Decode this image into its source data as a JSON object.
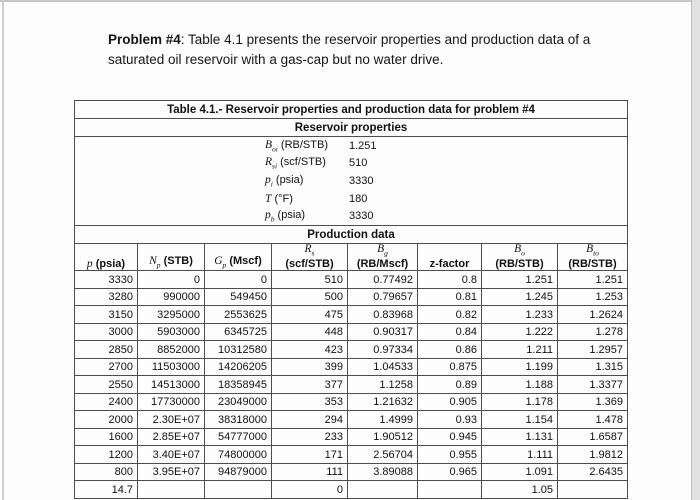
{
  "problem": {
    "label": "Problem #4",
    "text": ": Table 4.1 presents the reservoir properties and production data of a saturated oil reservoir with a gas-cap but no water drive."
  },
  "table": {
    "title": "Table 4.1.- Reservoir properties and production data for problem #4",
    "sections": {
      "reservoir_properties": {
        "heading": "Reservoir properties",
        "rows": [
          {
            "key": "Boi",
            "symbol": "B",
            "sub": "oi",
            "unit": "(RB/STB)",
            "value": "1.251"
          },
          {
            "key": "Rsi",
            "symbol": "R",
            "sub": "si",
            "unit": "(scf/STB)",
            "value": "510"
          },
          {
            "key": "pi",
            "symbol": "p",
            "sub": "i",
            "unit": "(psia)",
            "value": "3330"
          },
          {
            "key": "T",
            "symbol": "T",
            "sub": "",
            "unit": "(°F)",
            "value": "180"
          },
          {
            "key": "pb",
            "symbol": "p",
            "sub": "b",
            "unit": "(psia)",
            "value": "3330"
          }
        ]
      },
      "production_data": {
        "heading": "Production data",
        "columns": [
          {
            "key": "p",
            "symbol": "p",
            "sub": "",
            "unit": "(psia)",
            "twoline": false
          },
          {
            "key": "Np",
            "symbol": "N",
            "sub": "p",
            "unit": "(STB)",
            "twoline": false
          },
          {
            "key": "Gp",
            "symbol": "G",
            "sub": "p",
            "unit": "(Mscf)",
            "twoline": false
          },
          {
            "key": "Rs",
            "symbol": "R",
            "sub": "s",
            "unit": "(scf/STB)",
            "twoline": true
          },
          {
            "key": "Bg",
            "symbol": "B",
            "sub": "g",
            "unit": "(RB/Mscf)",
            "twoline": true
          },
          {
            "key": "z",
            "symbol": "",
            "sub": "",
            "unit": "z-factor",
            "twoline": false
          },
          {
            "key": "Bo",
            "symbol": "B",
            "sub": "o",
            "unit": "(RB/STB)",
            "twoline": true
          },
          {
            "key": "Bto",
            "symbol": "B",
            "sub": "to",
            "unit": "(RB/STB)",
            "twoline": true
          }
        ],
        "rows": [
          [
            "3330",
            "0",
            "0",
            "510",
            "0.77492",
            "0.8",
            "1.251",
            "1.251"
          ],
          [
            "3280",
            "990000",
            "549450",
            "500",
            "0.79657",
            "0.81",
            "1.245",
            "1.253"
          ],
          [
            "3150",
            "3295000",
            "2553625",
            "475",
            "0.83968",
            "0.82",
            "1.233",
            "1.2624"
          ],
          [
            "3000",
            "5903000",
            "6345725",
            "448",
            "0.90317",
            "0.84",
            "1.222",
            "1.278"
          ],
          [
            "2850",
            "8852000",
            "10312580",
            "423",
            "0.97334",
            "0.86",
            "1.211",
            "1.2957"
          ],
          [
            "2700",
            "11503000",
            "14206205",
            "399",
            "1.04533",
            "0.875",
            "1.199",
            "1.315"
          ],
          [
            "2550",
            "14513000",
            "18358945",
            "377",
            "1.1258",
            "0.89",
            "1.188",
            "1.3377"
          ],
          [
            "2400",
            "17730000",
            "23049000",
            "353",
            "1.21632",
            "0.905",
            "1.178",
            "1.369"
          ],
          [
            "2000",
            "2.30E+07",
            "38318000",
            "294",
            "1.4999",
            "0.93",
            "1.154",
            "1.478"
          ],
          [
            "1600",
            "2.85E+07",
            "54777000",
            "233",
            "1.90512",
            "0.945",
            "1.131",
            "1.6587"
          ],
          [
            "1200",
            "3.40E+07",
            "74800000",
            "171",
            "2.56704",
            "0.955",
            "1.111",
            "1.9812"
          ],
          [
            "800",
            "3.95E+07",
            "94879000",
            "111",
            "3.89088",
            "0.965",
            "1.091",
            "2.6435"
          ],
          [
            "14.7",
            "",
            "",
            "0",
            "",
            "",
            "1.05",
            ""
          ]
        ]
      }
    }
  }
}
